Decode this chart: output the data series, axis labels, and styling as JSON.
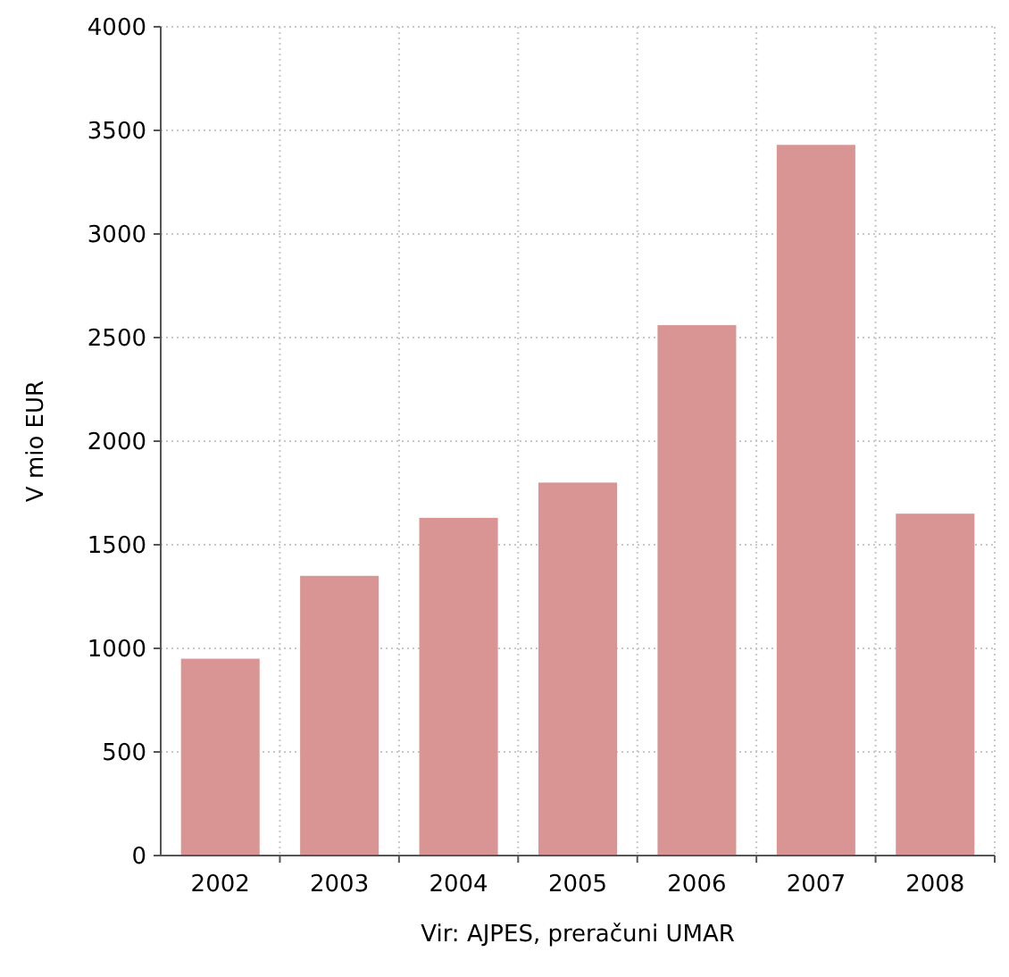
{
  "chart_data": {
    "type": "bar",
    "ylabel": "V mio EUR",
    "annotations": [
      "Vir: AJPES, preračuni UMAR"
    ],
    "categories": [
      "2002",
      "2003",
      "2004",
      "2005",
      "2006",
      "2007",
      "2008"
    ],
    "values": [
      950,
      1350,
      1630,
      1800,
      2560,
      3430,
      1650
    ],
    "color": "#d89594",
    "ylim": [
      0,
      4000
    ],
    "yticks": [
      0,
      500,
      1000,
      1500,
      2000,
      2500,
      3000,
      3500,
      4000
    ],
    "grid": true
  }
}
